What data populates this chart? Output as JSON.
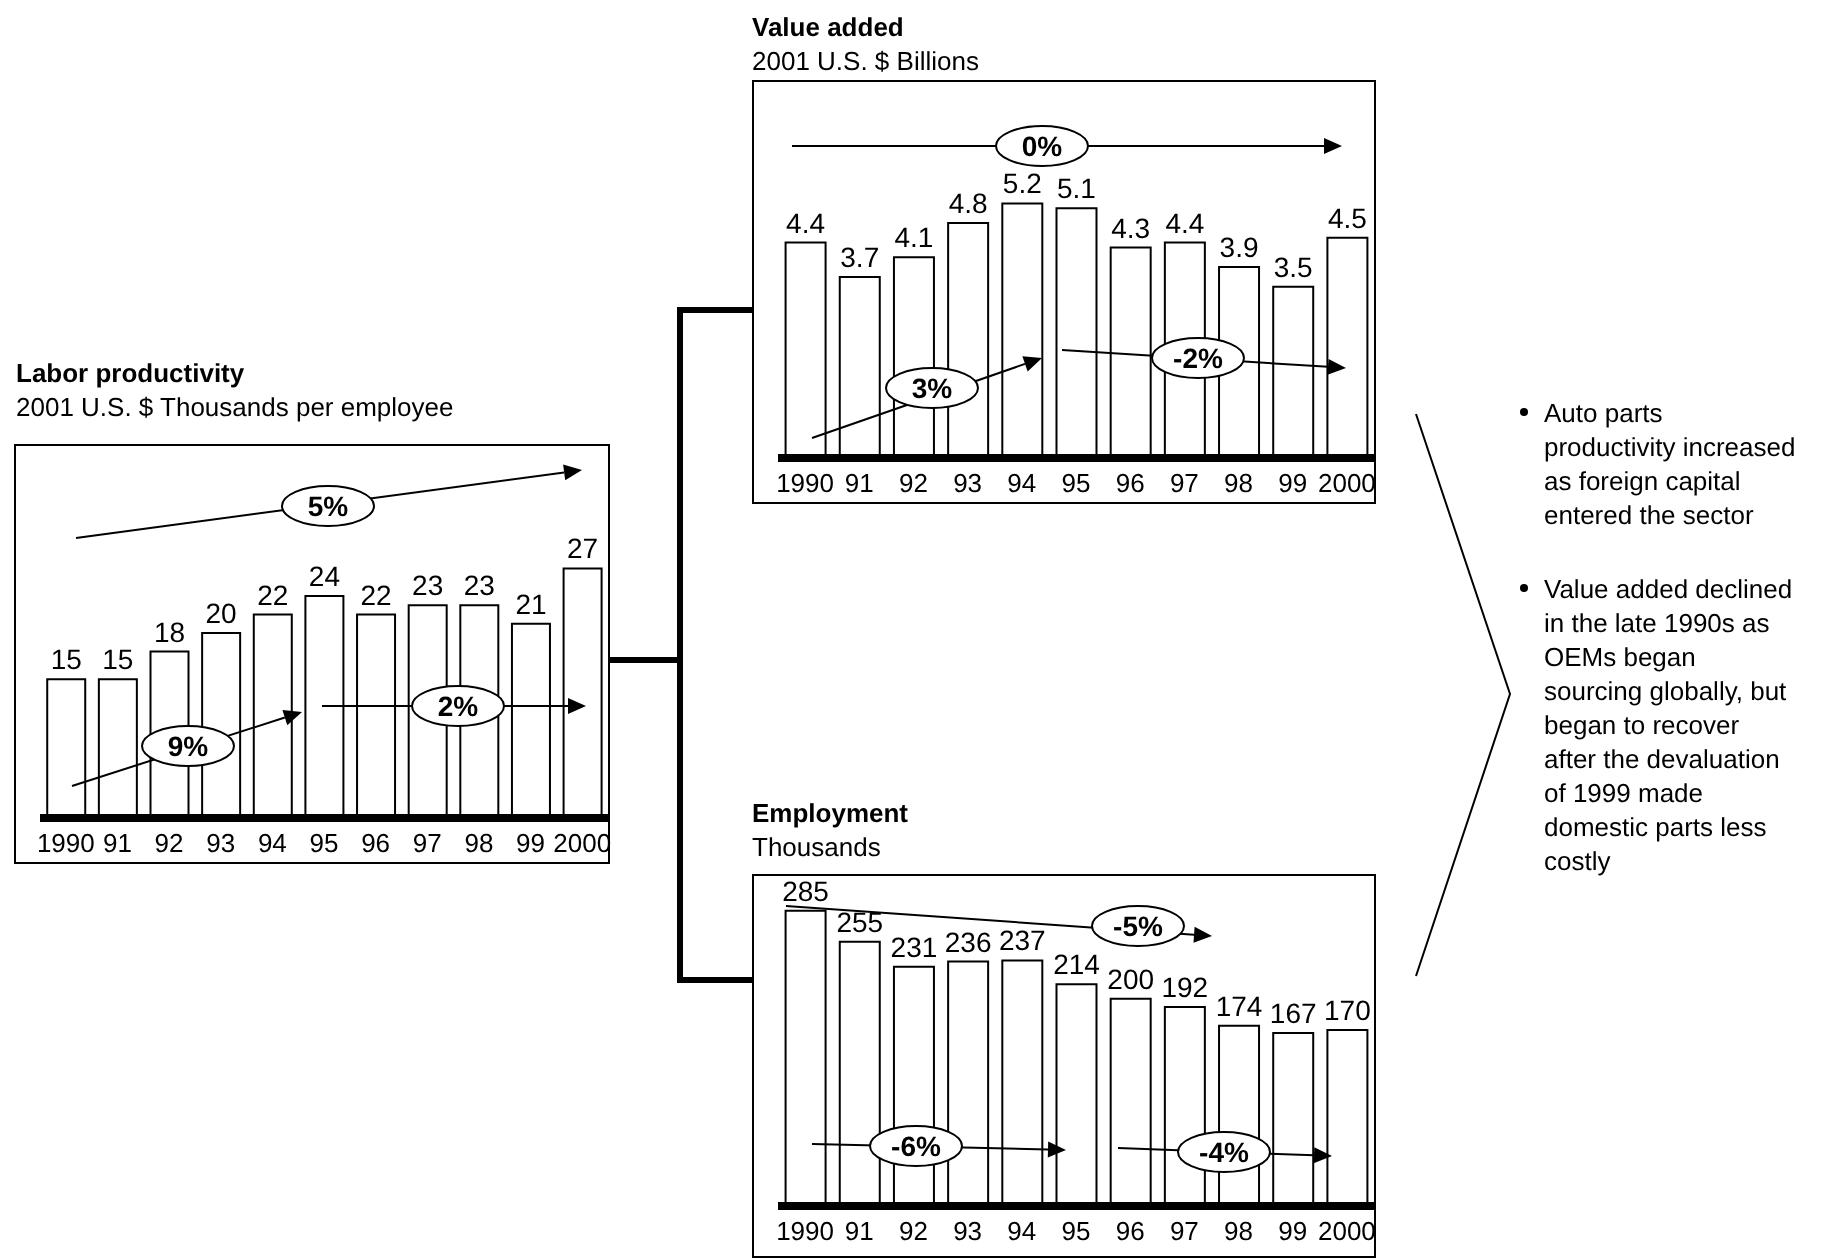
{
  "chart_data": [
    {
      "type": "bar",
      "title": "Labor productivity",
      "subtitle": "2001 U.S. $ Thousands per employee",
      "categories": [
        "1990",
        "91",
        "92",
        "93",
        "94",
        "95",
        "96",
        "97",
        "98",
        "99",
        "2000"
      ],
      "series": [
        {
          "color": "#ffffff",
          "values": [
            15,
            15,
            18,
            20,
            22,
            24,
            22,
            23,
            23,
            21,
            27
          ]
        }
      ],
      "data_labels": true,
      "tick_labels": "x",
      "annotations": [
        "5%",
        "9%",
        "2%"
      ]
    },
    {
      "type": "bar",
      "title": "Value added",
      "subtitle": "2001 U.S. $ Billions",
      "categories": [
        "1990",
        "91",
        "92",
        "93",
        "94",
        "95",
        "96",
        "97",
        "98",
        "99",
        "2000"
      ],
      "series": [
        {
          "color": "#ffffff",
          "values": [
            4.4,
            3.7,
            4.1,
            4.8,
            5.2,
            5.1,
            4.3,
            4.4,
            3.9,
            3.5,
            4.5
          ]
        }
      ],
      "data_labels": true,
      "tick_labels": "x",
      "annotations": [
        "0%",
        "3%",
        "-2%"
      ]
    },
    {
      "type": "bar",
      "title": "Employment",
      "subtitle": "Thousands",
      "categories": [
        "1990",
        "91",
        "92",
        "93",
        "94",
        "95",
        "96",
        "97",
        "98",
        "99",
        "2000"
      ],
      "series": [
        {
          "color": "#ffffff",
          "values": [
            285,
            255,
            231,
            236,
            237,
            214,
            200,
            192,
            174,
            167,
            170
          ]
        }
      ],
      "data_labels": true,
      "tick_labels": "x",
      "annotations": [
        "-5%",
        "-6%",
        "-4%"
      ]
    },
    {
      "type": "other",
      "annotations": [
        "Auto parts productivity increased as foreign capital entered the sector",
        "Value added declined in the late 1990s as OEMs began sourcing globally, but began to recover after the devaluation of 1999 made domestic parts less costly"
      ]
    }
  ]
}
